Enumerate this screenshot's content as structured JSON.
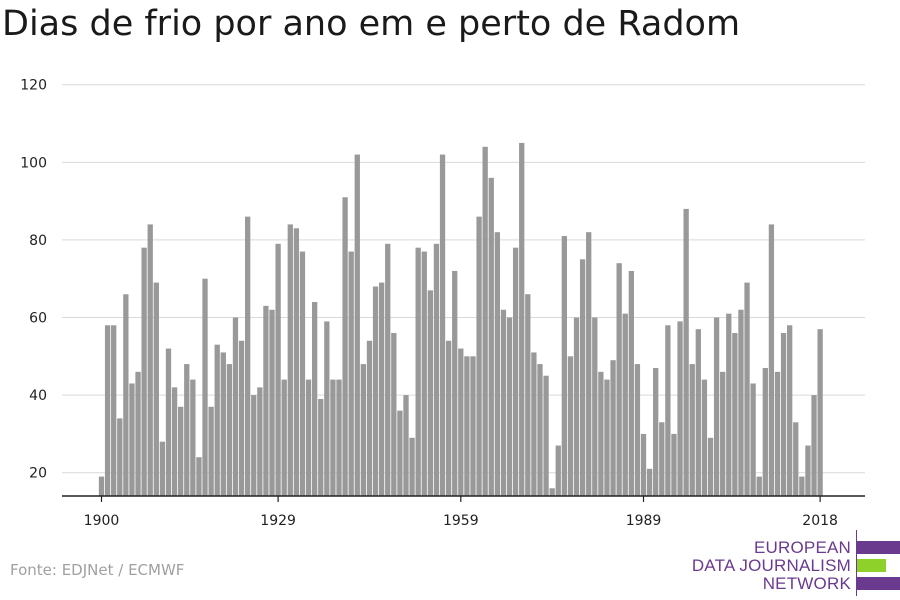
{
  "title": "Dias de frio por ano em e perto de Radom",
  "source": "Fonte: EDJNet / ECMWF",
  "logo": {
    "lines": [
      "EUROPEAN",
      "DATA JOURNALISM",
      "NETWORK"
    ],
    "colors": {
      "purple": "#6a3a8f",
      "green": "#8ed12a"
    }
  },
  "colors": {
    "bar": "#999999",
    "grid": "#d9d9d9",
    "axis": "#222222"
  },
  "chart_data": {
    "type": "bar",
    "title": "Dias de frio por ano em e perto de Radom",
    "xlabel": "",
    "ylabel": "",
    "ylim": [
      14,
      120
    ],
    "yticks": [
      20,
      40,
      60,
      80,
      100,
      120
    ],
    "xticks": [
      1900,
      1929,
      1959,
      1989,
      2018
    ],
    "grid": true,
    "x": [
      1900,
      1901,
      1902,
      1903,
      1904,
      1905,
      1906,
      1907,
      1908,
      1909,
      1910,
      1911,
      1912,
      1913,
      1914,
      1915,
      1916,
      1917,
      1918,
      1919,
      1920,
      1921,
      1922,
      1923,
      1924,
      1925,
      1926,
      1927,
      1928,
      1929,
      1930,
      1931,
      1932,
      1933,
      1934,
      1935,
      1936,
      1937,
      1938,
      1939,
      1940,
      1941,
      1942,
      1943,
      1944,
      1945,
      1946,
      1947,
      1948,
      1949,
      1950,
      1951,
      1952,
      1953,
      1954,
      1955,
      1956,
      1957,
      1958,
      1959,
      1960,
      1961,
      1962,
      1963,
      1964,
      1965,
      1966,
      1967,
      1968,
      1969,
      1970,
      1971,
      1972,
      1973,
      1974,
      1975,
      1976,
      1977,
      1978,
      1979,
      1980,
      1981,
      1982,
      1983,
      1984,
      1985,
      1986,
      1987,
      1988,
      1989,
      1990,
      1991,
      1992,
      1993,
      1994,
      1995,
      1996,
      1997,
      1998,
      1999,
      2000,
      2001,
      2002,
      2003,
      2004,
      2005,
      2006,
      2007,
      2008,
      2009,
      2010,
      2011,
      2012,
      2013,
      2014,
      2015,
      2016,
      2017,
      2018
    ],
    "values": [
      19,
      58,
      58,
      34,
      66,
      43,
      46,
      78,
      84,
      69,
      28,
      52,
      42,
      37,
      48,
      44,
      24,
      70,
      37,
      53,
      51,
      48,
      60,
      54,
      86,
      40,
      42,
      63,
      62,
      79,
      44,
      84,
      83,
      77,
      44,
      64,
      39,
      59,
      44,
      44,
      91,
      77,
      102,
      48,
      54,
      68,
      69,
      79,
      56,
      36,
      40,
      29,
      78,
      77,
      67,
      79,
      102,
      54,
      72,
      52,
      50,
      50,
      86,
      104,
      96,
      82,
      62,
      60,
      78,
      105,
      66,
      51,
      48,
      45,
      16,
      27,
      81,
      50,
      60,
      75,
      82,
      60,
      46,
      44,
      49,
      74,
      61,
      72,
      48,
      30,
      21,
      47,
      33,
      58,
      30,
      59,
      88,
      48,
      57,
      44,
      29,
      60,
      46,
      61,
      56,
      62,
      69,
      43,
      19,
      47,
      84,
      46,
      56,
      58,
      33,
      19,
      27,
      40,
      57
    ]
  }
}
